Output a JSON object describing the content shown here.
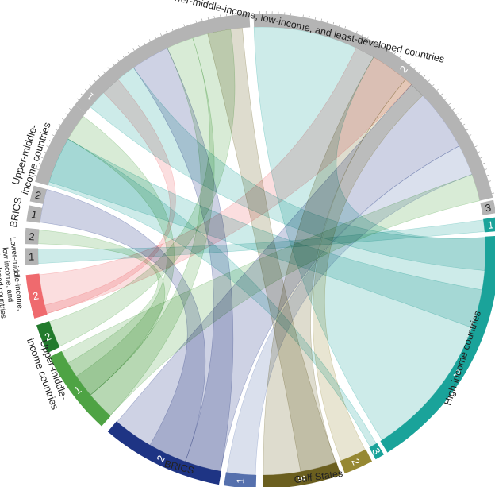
{
  "diagram": {
    "type": "chord",
    "groups": [
      {
        "id": "lmic_dest",
        "label_lines": [
          "Lower-middle-income, low-income, and least-developed countries"
        ],
        "segments": [
          {
            "num": "1",
            "color": "#b4b4b4"
          },
          {
            "num": "2",
            "color": "#b4b4b4"
          },
          {
            "num": "3",
            "color": "#b4b4b4"
          }
        ]
      },
      {
        "id": "hic",
        "label_lines": [
          "High-income countries"
        ],
        "segments": [
          {
            "num": "1",
            "color": "#1aa39a"
          },
          {
            "num": "2",
            "color": "#1aa39a"
          },
          {
            "num": "3",
            "color": "#1aa39a"
          }
        ]
      },
      {
        "id": "gulf",
        "label_lines": [
          "Gulf States"
        ],
        "segments": [
          {
            "num": "2",
            "color": "#968832"
          },
          {
            "num": "3",
            "color": "#6b5f1f"
          }
        ]
      },
      {
        "id": "brics_src",
        "label_lines": [
          "BRICS"
        ],
        "segments": [
          {
            "num": "1",
            "color": "#5570ad"
          },
          {
            "num": "2",
            "color": "#1e3484"
          }
        ]
      },
      {
        "id": "umic_src",
        "label_lines": [
          "Upper-middle-",
          "income countries"
        ],
        "segments": [
          {
            "num": "1",
            "color": "#4ea344"
          },
          {
            "num": "2",
            "color": "#227a2c"
          }
        ]
      },
      {
        "id": "lmic_src",
        "label_lines": [
          "Lower-middle-income,",
          "low-income, and",
          "least-developed countries"
        ],
        "segments": [
          {
            "num": "2",
            "color": "#ef6a6e"
          }
        ]
      },
      {
        "id": "brics_dest",
        "label_lines": [
          "BRICS"
        ],
        "segments": [
          {
            "num": "1",
            "color": "#b4b4b4"
          },
          {
            "num": "2",
            "color": "#b4b4b4"
          }
        ]
      },
      {
        "id": "umic_dest",
        "label_lines": [
          "Upper-middle-",
          "income countries"
        ],
        "segments": [
          {
            "num": "1",
            "color": "#b4b4b4"
          },
          {
            "num": "2",
            "color": "#b4b4b4"
          }
        ]
      },
      {
        "id": "lmic_dest_first",
        "label_lines": [],
        "segments": [
          {
            "num": "1",
            "color": "#b4b4b4"
          }
        ]
      }
    ],
    "ribbon_colors": {
      "teal": "#1aa39a",
      "red": "#ef6a6e",
      "green": "#4ea344",
      "navy": "#1e3484",
      "blue": "#5570ad",
      "olive": "#968832",
      "dark_olive": "#6b5f1f"
    }
  }
}
